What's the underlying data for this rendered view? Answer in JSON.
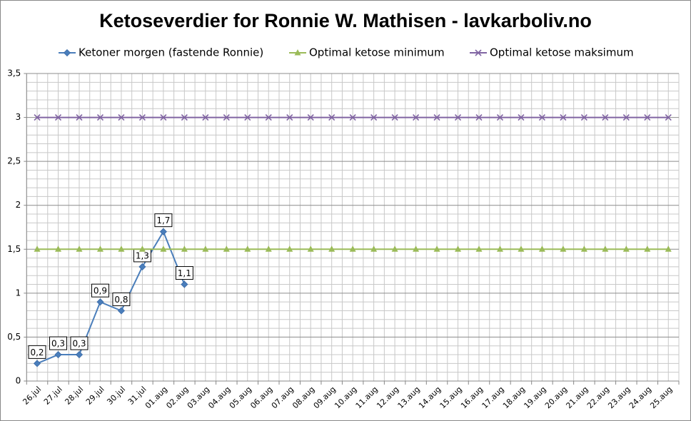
{
  "chart_data": {
    "type": "line",
    "title": "Ketoseverdier for Ronnie W. Mathisen - lavkarboliv.no",
    "categories": [
      "26.jul",
      "27.jul",
      "28.jul",
      "29.jul",
      "30.jul",
      "31.jul",
      "01.aug",
      "02.aug",
      "03.aug",
      "04.aug",
      "05.aug",
      "06.aug",
      "07.aug",
      "08.aug",
      "09.aug",
      "10.aug",
      "11.aug",
      "12.aug",
      "13.aug",
      "14.aug",
      "15.aug",
      "16.aug",
      "17.aug",
      "18.aug",
      "19.aug",
      "20.aug",
      "21.aug",
      "22.aug",
      "23.aug",
      "24.aug",
      "25.aug"
    ],
    "series": [
      {
        "name": "Ketoner morgen (fastende Ronnie)",
        "color": "#4a7ebb",
        "marker": "diamond",
        "values": [
          0.2,
          0.3,
          0.3,
          0.9,
          0.8,
          1.3,
          1.7,
          1.1,
          null,
          null,
          null,
          null,
          null,
          null,
          null,
          null,
          null,
          null,
          null,
          null,
          null,
          null,
          null,
          null,
          null,
          null,
          null,
          null,
          null,
          null,
          null
        ],
        "value_labels": [
          "0,2",
          "0,3",
          "0,3",
          "0,9",
          "0,8",
          "1,3",
          "1,7",
          "1,1",
          null,
          null,
          null,
          null,
          null,
          null,
          null,
          null,
          null,
          null,
          null,
          null,
          null,
          null,
          null,
          null,
          null,
          null,
          null,
          null,
          null,
          null,
          null
        ]
      },
      {
        "name": "Optimal ketose minimum",
        "color": "#9bbb59",
        "marker": "triangle",
        "values": [
          1.5,
          1.5,
          1.5,
          1.5,
          1.5,
          1.5,
          1.5,
          1.5,
          1.5,
          1.5,
          1.5,
          1.5,
          1.5,
          1.5,
          1.5,
          1.5,
          1.5,
          1.5,
          1.5,
          1.5,
          1.5,
          1.5,
          1.5,
          1.5,
          1.5,
          1.5,
          1.5,
          1.5,
          1.5,
          1.5,
          1.5
        ]
      },
      {
        "name": "Optimal ketose maksimum",
        "color": "#8064a2",
        "marker": "x",
        "values": [
          3,
          3,
          3,
          3,
          3,
          3,
          3,
          3,
          3,
          3,
          3,
          3,
          3,
          3,
          3,
          3,
          3,
          3,
          3,
          3,
          3,
          3,
          3,
          3,
          3,
          3,
          3,
          3,
          3,
          3,
          3
        ]
      }
    ],
    "ylim": [
      0,
      3.5
    ],
    "yticks": [
      0,
      {
        "value": 0.5,
        "label": "0,5"
      },
      1,
      {
        "value": 1.5,
        "label": "1,5"
      },
      2,
      {
        "value": 2.5,
        "label": "2,5"
      },
      3,
      {
        "value": 3.5,
        "label": "3,5"
      }
    ],
    "grid": true,
    "legend": "top"
  }
}
